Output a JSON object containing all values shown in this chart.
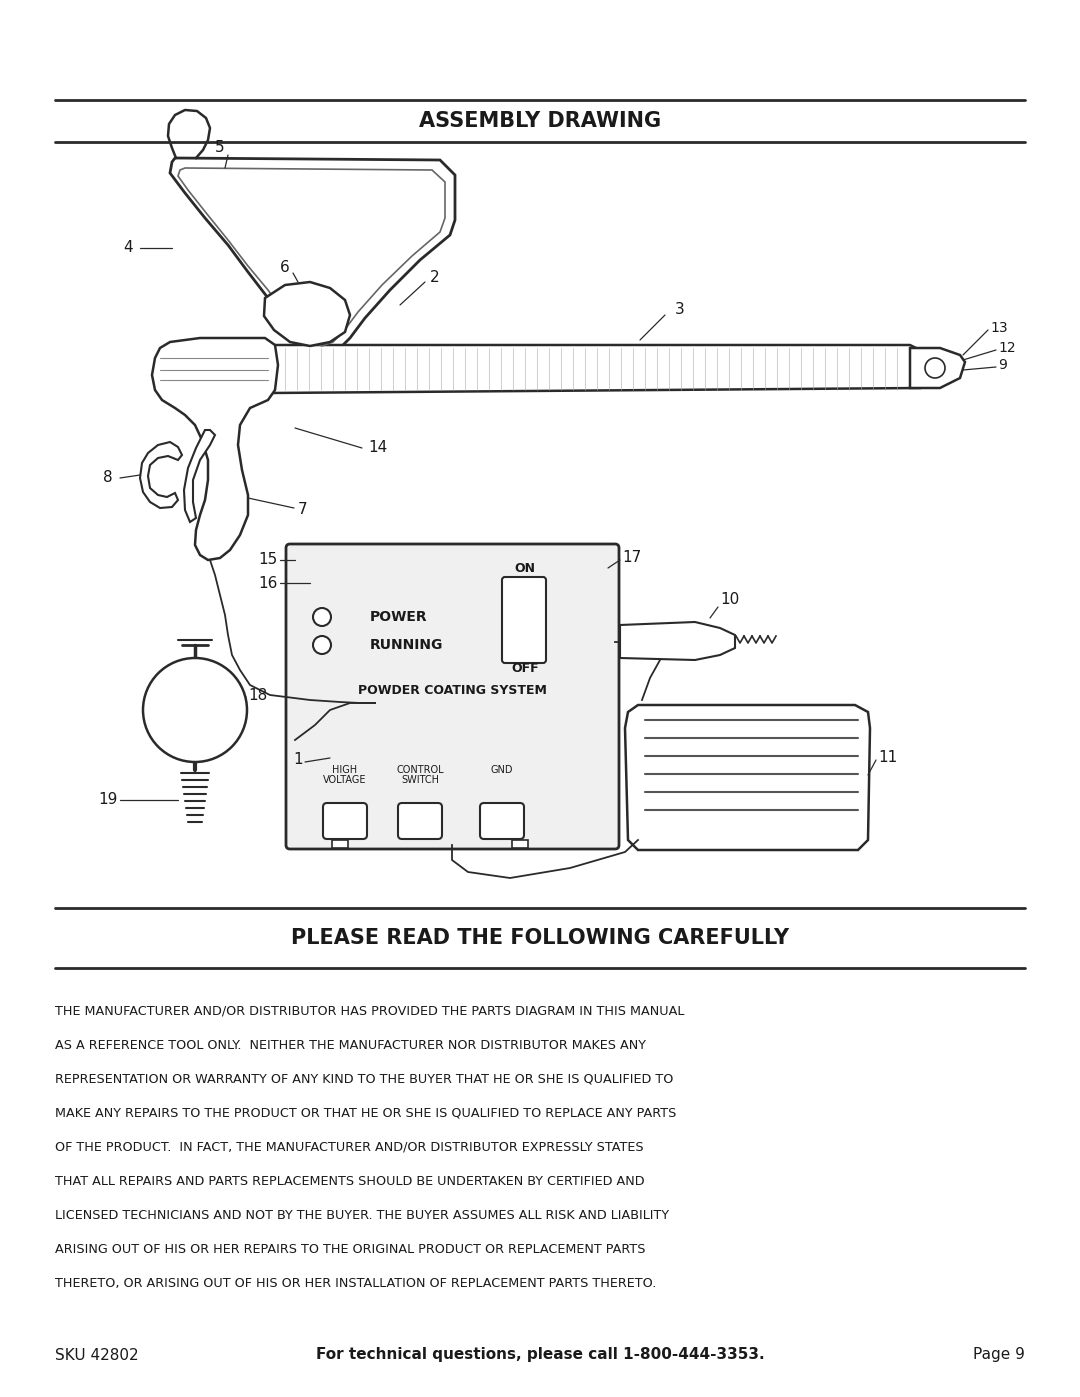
{
  "bg_color": "#ffffff",
  "title": "ASSEMBLY DRAWING",
  "section2_title": "PLEASE READ THE FOLLOWING CAREFULLY",
  "body_line1": "THE MANUFACTURER AND/OR DISTRIBUTOR HAS PROVIDED THE PARTS DIAGRAM IN THIS MANUAL",
  "body_line2": "AS A REFERENCE TOOL ONLY.  NEITHER THE MANUFACTURER NOR DISTRIBUTOR MAKES ANY",
  "body_line3": "REPRESENTATION OR WARRANTY OF ANY KIND TO THE BUYER THAT HE OR SHE IS QUALIFIED TO",
  "body_line4": "MAKE ANY REPAIRS TO THE PRODUCT OR THAT HE OR SHE IS QUALIFIED TO REPLACE ANY PARTS",
  "body_line5": "OF THE PRODUCT.  IN FACT, THE MANUFACTURER AND/OR DISTRIBUTOR EXPRESSLY STATES",
  "body_line6": "THAT ALL REPAIRS AND PARTS REPLACEMENTS SHOULD BE UNDERTAKEN BY CERTIFIED AND",
  "body_line7": "LICENSED TECHNICIANS AND NOT BY THE BUYER. THE BUYER ASSUMES ALL RISK AND LIABILITY",
  "body_line8": "ARISING OUT OF HIS OR HER REPAIRS TO THE ORIGINAL PRODUCT OR REPLACEMENT PARTS",
  "body_line9": "THERETO, OR ARISING OUT OF HIS OR HER INSTALLATION OF REPLACEMENT PARTS THERETO.",
  "footer_sku": "SKU 42802",
  "footer_center": "For technical questions, please call 1-800-444-3353.",
  "footer_page": "Page 9",
  "line_color": "#2a2a2a",
  "text_color": "#1a1a1a"
}
